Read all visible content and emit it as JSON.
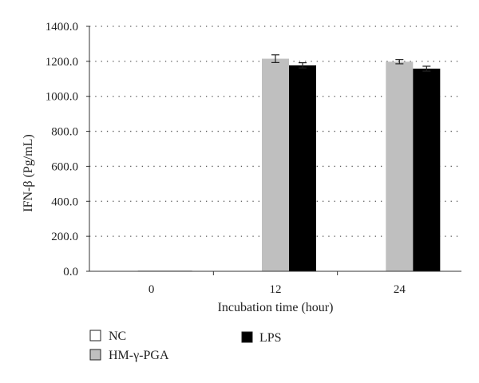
{
  "chart_data": {
    "type": "bar",
    "title": "",
    "xlabel": "Incubation time (hour)",
    "ylabel": "IFN-β (Pg/mL)",
    "ylim": [
      0,
      1400
    ],
    "yticks": [
      "0.0",
      "200.0",
      "400.0",
      "600.0",
      "800.0",
      "1000.0",
      "1200.0",
      "1400.0"
    ],
    "categories": [
      "0",
      "12",
      "24"
    ],
    "grid": "horizontal dotted",
    "legend_position": "bottom-left",
    "series": [
      {
        "name": "NC",
        "color": "#ffffff",
        "values": [
          0,
          0,
          0
        ],
        "errors": [
          0,
          0,
          0
        ]
      },
      {
        "name": "HM-γ-PGA",
        "color": "#bfbfbf",
        "values": [
          0,
          1215,
          1198
        ],
        "errors": [
          0,
          22,
          12
        ]
      },
      {
        "name": "LPS",
        "color": "#000000",
        "values": [
          0,
          1177,
          1158
        ],
        "errors": [
          0,
          15,
          14
        ]
      }
    ]
  }
}
